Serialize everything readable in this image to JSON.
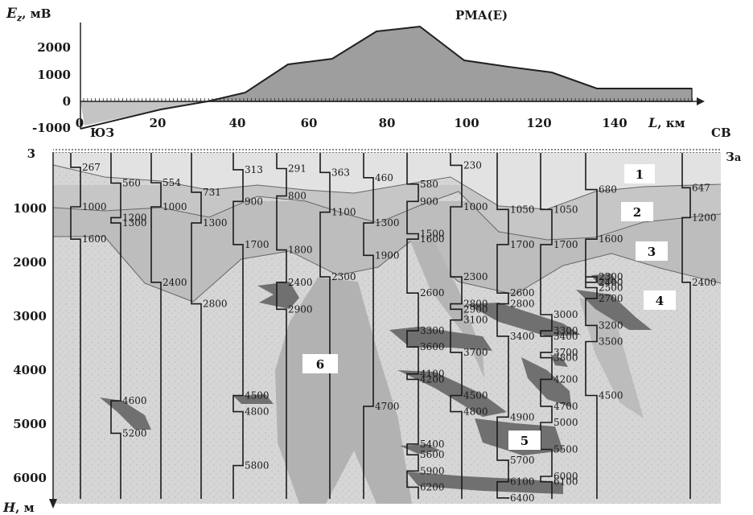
{
  "profile": {
    "title": "PMA(E)",
    "y_label_main": "E",
    "y_label_sub": "z",
    "y_label_unit": ", мВ",
    "x_label": "L",
    "x_label_unit": ", км",
    "y_ticks": [
      "2000",
      "1000",
      "0",
      "-1000"
    ],
    "y_tick_values": [
      2000,
      1000,
      0,
      -1000
    ],
    "x_ticks": [
      "0",
      "20",
      "40",
      "60",
      "80",
      "100",
      "120",
      "140"
    ],
    "x_tick_values": [
      0,
      20,
      40,
      60,
      80,
      100,
      120,
      140
    ],
    "curve_L": [
      0,
      20,
      33,
      43,
      54,
      65,
      77,
      88,
      100,
      111,
      122,
      134,
      148
    ],
    "curve_E": [
      -1000,
      -450,
      0,
      300,
      1300,
      1500,
      2500,
      2650,
      1400,
      1250,
      1050,
      450,
      450
    ],
    "dir_left": "ЮЗ",
    "dir_right": "СВ",
    "dir_far_right": "З",
    "dir_far_right_sub": "а"
  },
  "section": {
    "depth_label": "H",
    "depth_unit": ", м",
    "top_value": "3",
    "depth_ticks": [
      "1000",
      "2000",
      "3000",
      "4000",
      "5000",
      "6000"
    ],
    "depth_tick_values": [
      1000,
      2000,
      3000,
      4000,
      5000,
      6000
    ],
    "layers": [
      "1",
      "2",
      "3",
      "4",
      "5",
      "6"
    ],
    "wells": [
      {
        "depths": [
          "267",
          "1000",
          "1600"
        ]
      },
      {
        "depths": [
          "560",
          "1200",
          "1300",
          "4600",
          "5200"
        ]
      },
      {
        "depths": [
          "554",
          "1000",
          "2400"
        ]
      },
      {
        "depths": [
          "731",
          "1300",
          "2800"
        ]
      },
      {
        "depths": [
          "313",
          "900",
          "1700",
          "4500",
          "4800",
          "5800"
        ]
      },
      {
        "depths": [
          "291",
          "800",
          "1800",
          "2400",
          "2900"
        ]
      },
      {
        "depths": [
          "363",
          "1100",
          "2300"
        ]
      },
      {
        "depths": [
          "460",
          "1300",
          "1900",
          "4700"
        ]
      },
      {
        "depths": [
          "580",
          "900",
          "1500",
          "1600",
          "2600",
          "3300",
          "3600",
          "4100",
          "4200",
          "5400",
          "5600",
          "5900",
          "6200"
        ]
      },
      {
        "depths": [
          "230",
          "1000",
          "2300",
          "2800",
          "2900",
          "3100",
          "3700",
          "4500",
          "4800"
        ]
      },
      {
        "depths": [
          "1050",
          "1700",
          "2600",
          "2800",
          "3400",
          "4900",
          "5700",
          "6100",
          "6400"
        ]
      },
      {
        "depths": [
          "1050",
          "1700",
          "3000",
          "3300",
          "3400",
          "3700",
          "3800",
          "4200",
          "4700",
          "5000",
          "5500",
          "6000",
          "6100"
        ]
      },
      {
        "depths": [
          "680",
          "1600",
          "2400",
          "2300",
          "2500",
          "2700",
          "3200",
          "3500",
          "4500"
        ]
      },
      {
        "depths": [
          "647",
          "1200",
          "2400"
        ]
      }
    ]
  }
}
